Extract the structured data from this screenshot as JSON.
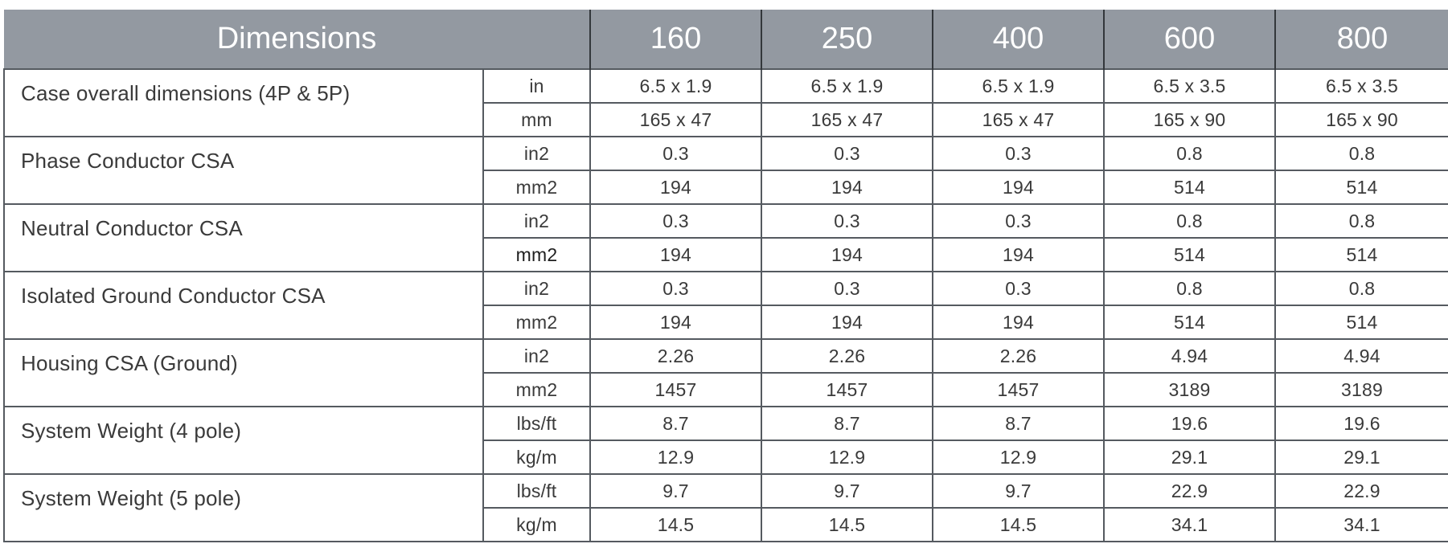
{
  "header": {
    "title": "Dimensions",
    "columns": [
      "160",
      "250",
      "400",
      "600",
      "800"
    ]
  },
  "rows": [
    {
      "label": "Case overall dimensions (4P & 5P)",
      "units": [
        "in",
        "mm"
      ],
      "values": [
        [
          "6.5 x 1.9",
          "6.5 x 1.9",
          "6.5 x 1.9",
          "6.5 x 3.5",
          "6.5 x 3.5"
        ],
        [
          "165 x 47",
          "165 x 47",
          "165 x 47",
          "165 x 90",
          "165 x 90"
        ]
      ]
    },
    {
      "label": "Phase Conductor CSA",
      "units": [
        "in2",
        "mm2"
      ],
      "values": [
        [
          "0.3",
          "0.3",
          "0.3",
          "0.8",
          "0.8"
        ],
        [
          "194",
          "194",
          "194",
          "514",
          "514"
        ]
      ]
    },
    {
      "label": "Neutral Conductor CSA",
      "units": [
        "in2",
        "mm2"
      ],
      "values": [
        [
          "0.3",
          "0.3",
          "0.3",
          "0.8",
          "0.8"
        ],
        [
          "194",
          "194",
          "194",
          "514",
          "514"
        ]
      ]
    },
    {
      "label": "Isolated Ground Conductor CSA",
      "units": [
        "in2",
        "mm2"
      ],
      "values": [
        [
          "0.3",
          "0.3",
          "0.3",
          "0.8",
          "0.8"
        ],
        [
          "194",
          "194",
          "194",
          "514",
          "514"
        ]
      ]
    },
    {
      "label": "Housing CSA (Ground)",
      "units": [
        "in2",
        "mm2"
      ],
      "values": [
        [
          "2.26",
          "2.26",
          "2.26",
          "4.94",
          "4.94"
        ],
        [
          "1457",
          "1457",
          "1457",
          "3189",
          "3189"
        ]
      ]
    },
    {
      "label": "System Weight (4 pole)",
      "units": [
        "lbs/ft",
        "kg/m"
      ],
      "values": [
        [
          "8.7",
          "8.7",
          "8.7",
          "19.6",
          "19.6"
        ],
        [
          "12.9",
          "12.9",
          "12.9",
          "29.1",
          "29.1"
        ]
      ]
    },
    {
      "label": "System Weight (5 pole)",
      "units": [
        "lbs/ft",
        "kg/m"
      ],
      "values": [
        [
          "9.7",
          "9.7",
          "9.7",
          "22.9",
          "22.9"
        ],
        [
          "14.5",
          "14.5",
          "14.5",
          "34.1",
          "34.1"
        ]
      ]
    }
  ]
}
